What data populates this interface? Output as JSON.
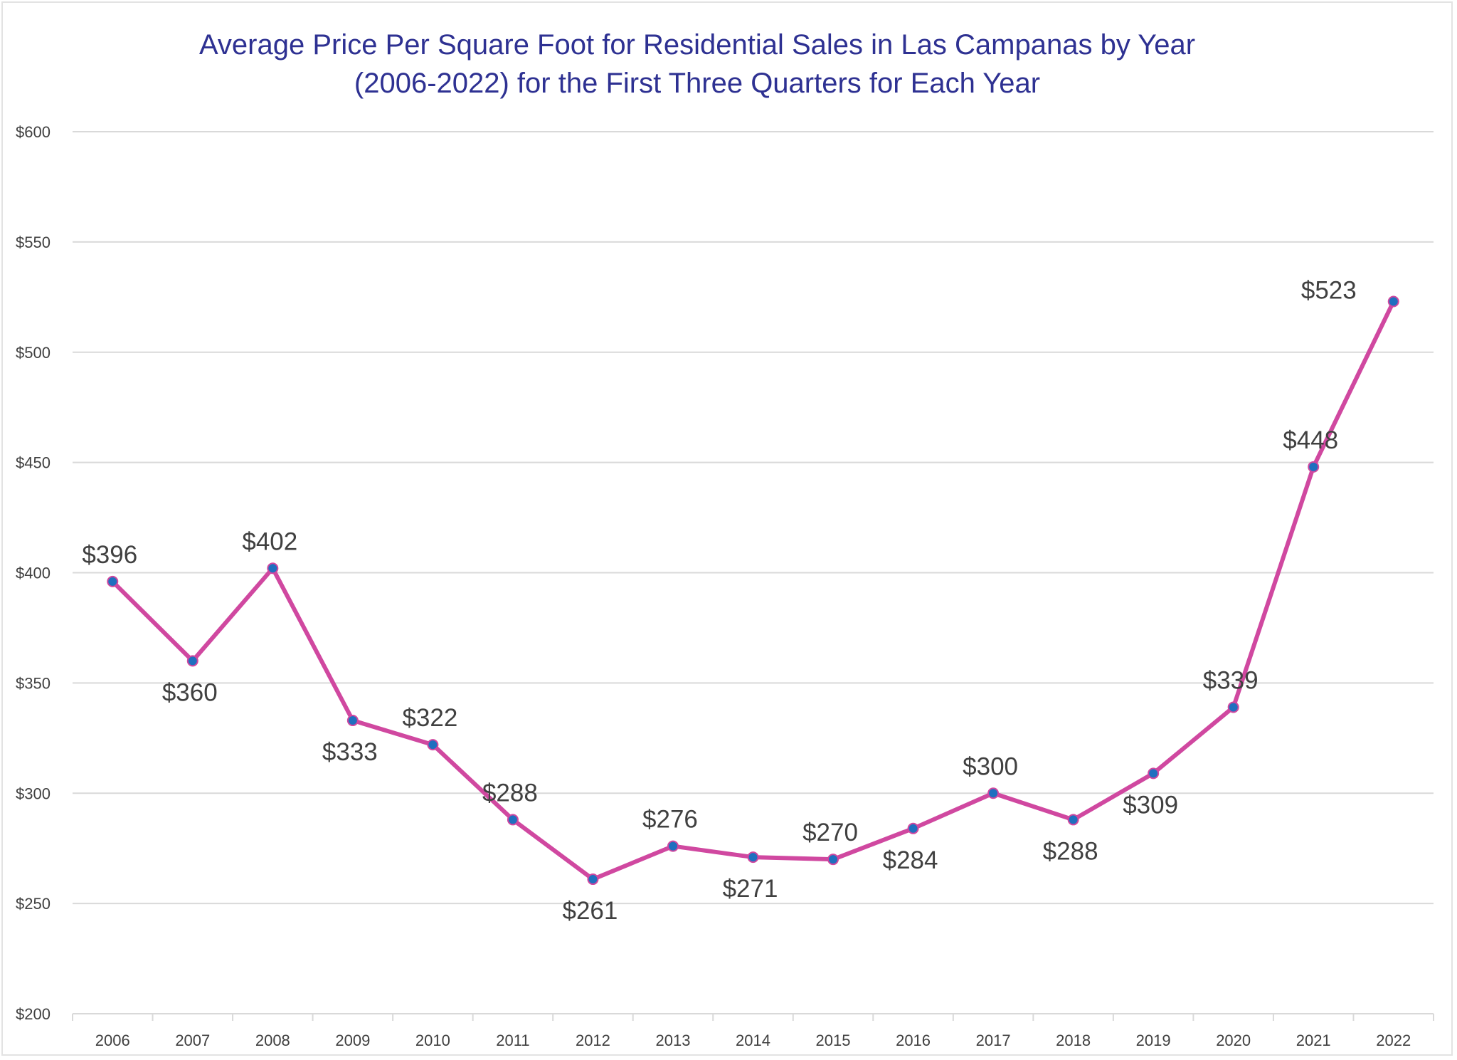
{
  "chart_data": {
    "type": "line",
    "title_line1": "Average Price Per Square Foot for Residential Sales in Las Campanas by Year",
    "title_line2": "(2006-2022) for the First Three Quarters for Each Year",
    "xlabel": "",
    "ylabel": "",
    "categories": [
      "2006",
      "2007",
      "2008",
      "2009",
      "2010",
      "2011",
      "2012",
      "2013",
      "2014",
      "2015",
      "2016",
      "2017",
      "2018",
      "2019",
      "2020",
      "2021",
      "2022"
    ],
    "series": [
      {
        "name": "Average Price Per Square Foot",
        "values": [
          396,
          360,
          402,
          333,
          322,
          288,
          261,
          276,
          271,
          270,
          284,
          300,
          288,
          309,
          339,
          448,
          523
        ],
        "labels": [
          "$396",
          "$360",
          "$402",
          "$333",
          "$322",
          "$288",
          "$261",
          "$276",
          "$271",
          "$270",
          "$284",
          "$300",
          "$288",
          "$309",
          "$339",
          "$448",
          "$523"
        ],
        "label_positions": [
          "above",
          "below",
          "above",
          "below",
          "above",
          "above",
          "below",
          "above",
          "below",
          "above",
          "below",
          "above",
          "below",
          "below",
          "above",
          "above",
          "left"
        ],
        "line_color": "#d048a0",
        "marker_color": "#1f6fbf"
      }
    ],
    "ylim": [
      200,
      600
    ],
    "yticks": [
      200,
      250,
      300,
      350,
      400,
      450,
      500,
      550,
      600
    ],
    "ytick_labels": [
      "$200",
      "$250",
      "$300",
      "$350",
      "$400",
      "$450",
      "$500",
      "$550",
      "$600"
    ],
    "grid": true,
    "legend": "none",
    "colors": {
      "title": "#2e3192",
      "gridline": "#d9d9d9",
      "text": "#404040"
    }
  }
}
